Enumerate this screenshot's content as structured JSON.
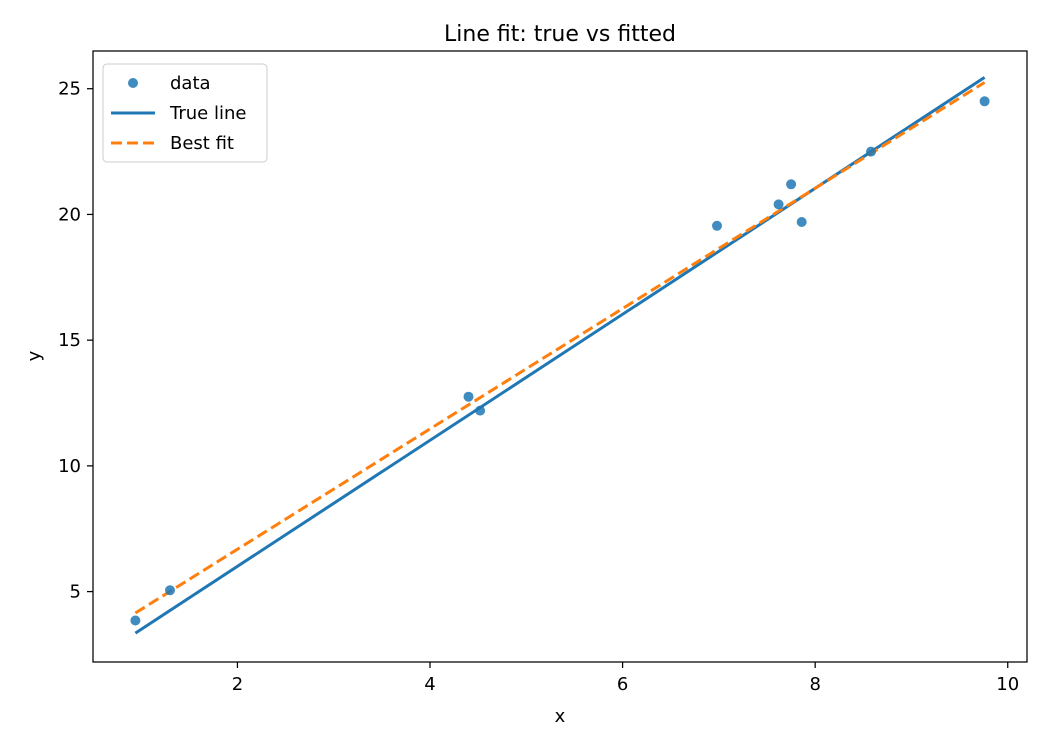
{
  "chart_data": {
    "type": "scatter",
    "title": "Line fit: true vs fitted",
    "xlabel": "x",
    "ylabel": "y",
    "xlim": [
      0.5,
      10.2
    ],
    "ylim": [
      2.2,
      26.5
    ],
    "xticks": [
      2,
      4,
      6,
      8,
      10
    ],
    "yticks": [
      5,
      10,
      15,
      20,
      25
    ],
    "grid": false,
    "legend_position": "upper-left",
    "series": [
      {
        "name": "data",
        "kind": "scatter",
        "color": "#1f77b4",
        "points": [
          [
            0.94,
            3.85
          ],
          [
            1.3,
            5.05
          ],
          [
            4.4,
            12.75
          ],
          [
            4.52,
            12.2
          ],
          [
            6.98,
            19.55
          ],
          [
            7.62,
            20.4
          ],
          [
            7.75,
            21.2
          ],
          [
            7.86,
            19.7
          ],
          [
            8.58,
            22.5
          ],
          [
            9.76,
            24.5
          ]
        ]
      },
      {
        "name": "True line",
        "kind": "line",
        "color": "#1f77b4",
        "style": "solid",
        "points": [
          [
            0.94,
            3.35
          ],
          [
            9.76,
            25.45
          ]
        ]
      },
      {
        "name": "Best fit",
        "kind": "line",
        "color": "#ff7f0e",
        "style": "dashed",
        "points": [
          [
            0.94,
            4.15
          ],
          [
            9.76,
            25.25
          ]
        ]
      }
    ]
  }
}
